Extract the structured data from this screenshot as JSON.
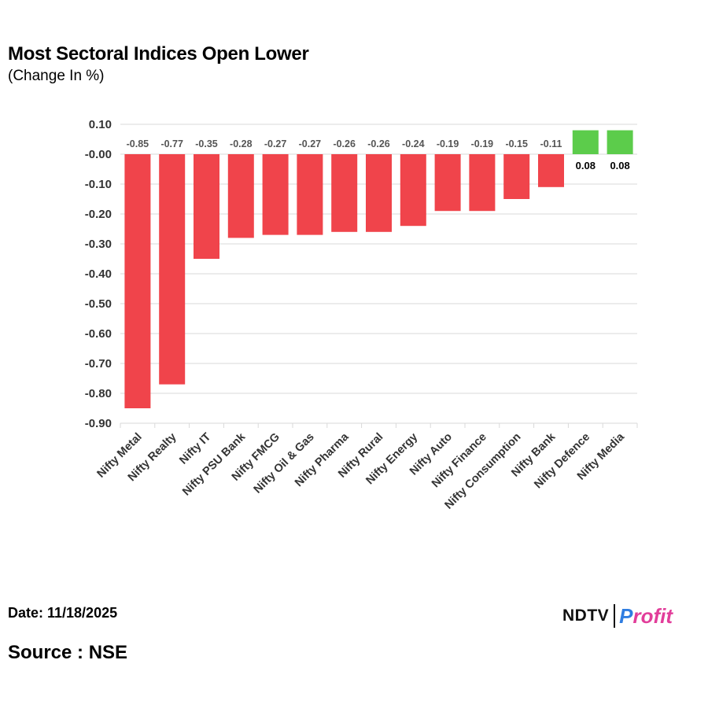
{
  "title": "Most Sectoral Indices Open Lower",
  "subtitle": "(Change In %)",
  "date_line": "Date: 11/18/2025",
  "source_line": "Source : NSE",
  "logo": {
    "brand": "NDTV",
    "product_p": "P",
    "product_rest": "rofit"
  },
  "colors": {
    "negative": "#f0444b",
    "positive": "#5ccc4b",
    "grid": "#d9d9d9",
    "axis_text": "#333333"
  },
  "chart_data": {
    "type": "bar",
    "title": "Most Sectoral Indices Open Lower",
    "ylabel": "Change In %",
    "xlabel": "",
    "ylim": [
      -0.9,
      0.1
    ],
    "yticks": [
      0.1,
      0.0,
      -0.1,
      -0.2,
      -0.3,
      -0.4,
      -0.5,
      -0.6,
      -0.7,
      -0.8,
      -0.9
    ],
    "ytick_labels": [
      "0.10",
      "-0.00",
      "-0.10",
      "-0.20",
      "-0.30",
      "-0.40",
      "-0.50",
      "-0.60",
      "-0.70",
      "-0.80",
      "-0.90"
    ],
    "categories": [
      "Nifty Metal",
      "Nifty Realty",
      "Nifty IT",
      "Nifty PSU Bank",
      "Nifty FMCG",
      "Nifty Oil & Gas",
      "Nifty Pharma",
      "Nifty Rural",
      "Nifty Energy",
      "Nifty Auto",
      "Nifty Finance",
      "Nifty Consumption",
      "Nifty Bank",
      "Nifty Defence",
      "Nifty Media"
    ],
    "values": [
      -0.85,
      -0.77,
      -0.35,
      -0.28,
      -0.27,
      -0.27,
      -0.26,
      -0.26,
      -0.24,
      -0.19,
      -0.19,
      -0.15,
      -0.11,
      0.08,
      0.08
    ],
    "value_labels": [
      "-0.85",
      "-0.77",
      "-0.35",
      "-0.28",
      "-0.27",
      "-0.27",
      "-0.26",
      "-0.26",
      "-0.24",
      "-0.19",
      "-0.19",
      "-0.15",
      "-0.11",
      "0.08",
      "0.08"
    ]
  }
}
